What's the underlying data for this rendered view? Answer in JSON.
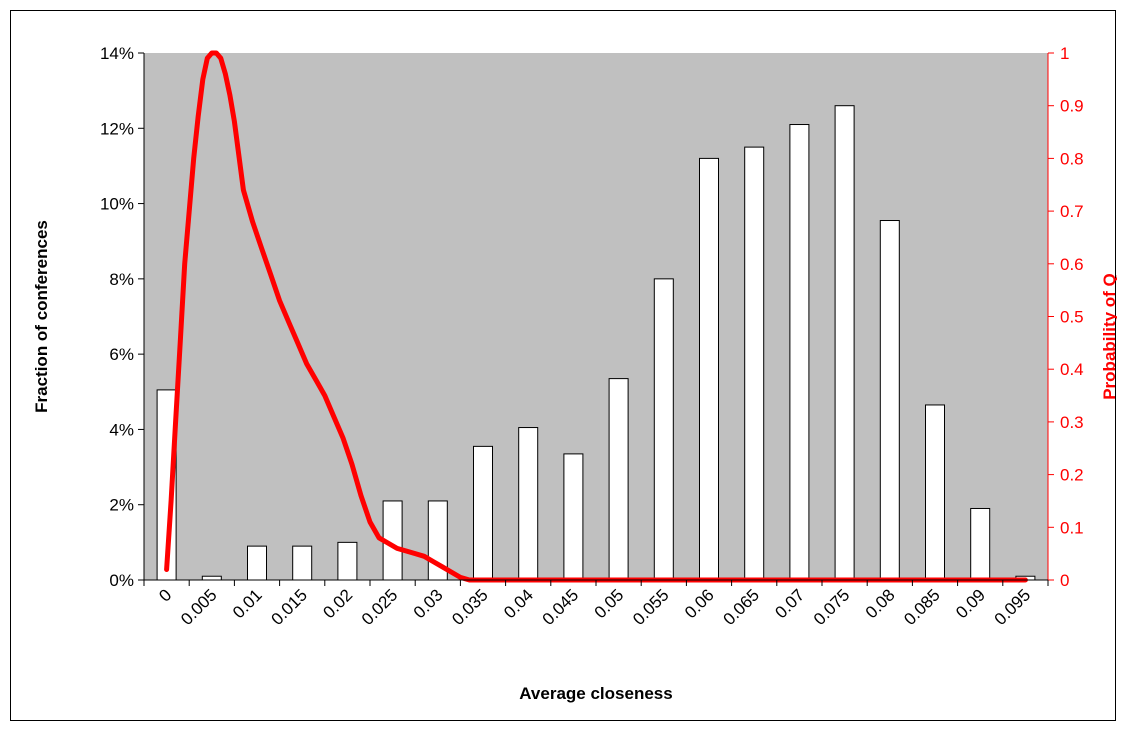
{
  "chart_data": {
    "type": "bar",
    "title": "",
    "xlabel": "Average closeness",
    "ylabel": "Fraction of conferences",
    "y2label": "Probability of Q",
    "categories": [
      "0",
      "0.005",
      "0.01",
      "0.015",
      "0.02",
      "0.025",
      "0.03",
      "0.035",
      "0.04",
      "0.045",
      "0.05",
      "0.055",
      "0.06",
      "0.065",
      "0.07",
      "0.075",
      "0.08",
      "0.085",
      "0.09",
      "0.095"
    ],
    "series": [
      {
        "type": "bar",
        "axis": "left",
        "values": [
          5.05,
          0.1,
          0.9,
          0.9,
          1.0,
          2.1,
          2.1,
          3.55,
          4.05,
          3.35,
          5.35,
          8.0,
          11.2,
          11.5,
          12.1,
          12.6,
          9.55,
          4.65,
          1.9,
          0.1
        ]
      },
      {
        "type": "line",
        "axis": "right",
        "x": [
          0.0025,
          0.003,
          0.0035,
          0.004,
          0.0045,
          0.005,
          0.0055,
          0.006,
          0.0065,
          0.007,
          0.0075,
          0.008,
          0.0085,
          0.009,
          0.0095,
          0.01,
          0.011,
          0.012,
          0.013,
          0.014,
          0.015,
          0.016,
          0.017,
          0.018,
          0.019,
          0.02,
          0.021,
          0.022,
          0.023,
          0.024,
          0.025,
          0.026,
          0.027,
          0.028,
          0.029,
          0.03,
          0.031,
          0.032,
          0.033,
          0.034,
          0.035,
          0.036,
          0.037,
          0.038,
          0.039,
          0.04,
          0.05,
          0.06,
          0.07,
          0.08,
          0.09,
          0.0975
        ],
        "values": [
          0.02,
          0.15,
          0.3,
          0.45,
          0.6,
          0.7,
          0.8,
          0.88,
          0.95,
          0.99,
          1.0,
          1.0,
          0.99,
          0.96,
          0.92,
          0.87,
          0.74,
          0.68,
          0.63,
          0.58,
          0.53,
          0.49,
          0.45,
          0.41,
          0.38,
          0.35,
          0.31,
          0.27,
          0.22,
          0.16,
          0.11,
          0.08,
          0.07,
          0.06,
          0.055,
          0.05,
          0.045,
          0.035,
          0.025,
          0.015,
          0.005,
          0.0,
          0.0,
          0.0,
          0.0,
          0.0,
          0.0,
          0.0,
          0.0,
          0.0,
          0.0,
          0.0
        ],
        "color": "#ff0000"
      }
    ],
    "xlim": [
      0,
      0.1
    ],
    "ylim": [
      0,
      14
    ],
    "ytick_labels": [
      "0%",
      "2%",
      "4%",
      "6%",
      "8%",
      "10%",
      "12%",
      "14%"
    ],
    "ytick_values": [
      0,
      2,
      4,
      6,
      8,
      10,
      12,
      14
    ],
    "y2lim": [
      0,
      1
    ],
    "y2tick_labels": [
      "0",
      "0.1",
      "0.2",
      "0.3",
      "0.4",
      "0.5",
      "0.6",
      "0.7",
      "0.8",
      "0.9",
      "1"
    ],
    "y2tick_values": [
      0,
      0.1,
      0.2,
      0.3,
      0.4,
      0.5,
      0.6,
      0.7,
      0.8,
      0.9,
      1.0
    ],
    "grid": false,
    "legend": "none",
    "colors": {
      "plot_background": "#c0c0c0",
      "bar_fill": "#ffffff",
      "bar_stroke": "#000000",
      "line": "#ff0000",
      "right_axis": "#ff0000"
    }
  }
}
